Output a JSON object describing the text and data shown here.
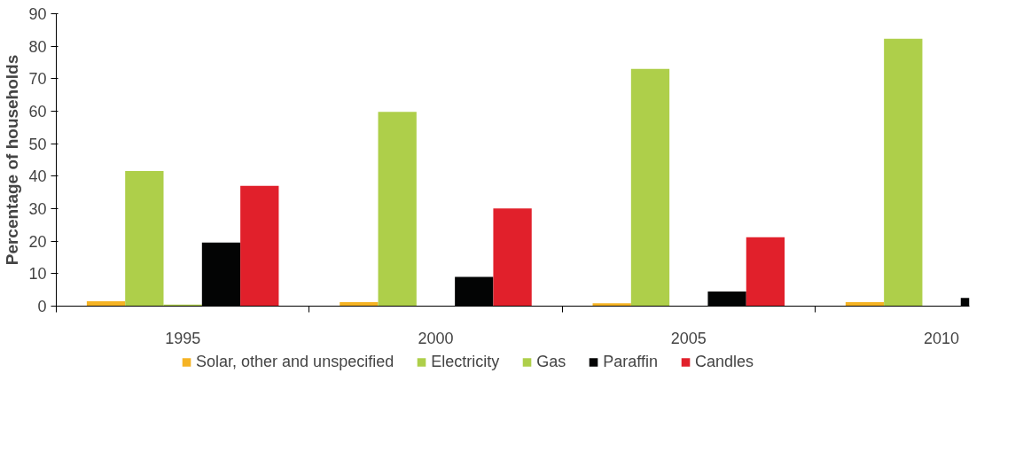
{
  "chart_data": {
    "type": "bar",
    "ylabel": "Percentage of households",
    "categories": [
      "1995",
      "2000",
      "2005",
      "2010"
    ],
    "series": [
      {
        "name": "Solar, other and unspecified",
        "color": "#f5b324",
        "values": [
          1.5,
          1.2,
          0.9,
          1.2
        ]
      },
      {
        "name": "Electricity",
        "color": "#aecf4a",
        "values": [
          41.6,
          59.8,
          73,
          82.3
        ]
      },
      {
        "name": "Gas",
        "color": "#aecf4a",
        "values": [
          0.5,
          0,
          0,
          0
        ]
      },
      {
        "name": "Paraffin",
        "color": "#030404",
        "values": [
          19.6,
          9,
          4.5,
          2.5
        ]
      },
      {
        "name": "Candles",
        "color": "#e1202b",
        "values": [
          37,
          30.1,
          21.2,
          null
        ]
      }
    ],
    "ylim": [
      0,
      90
    ],
    "yticks": [
      0,
      10,
      20,
      30,
      40,
      50,
      60,
      70,
      80,
      90
    ],
    "grid": false,
    "legend": "bottom"
  }
}
